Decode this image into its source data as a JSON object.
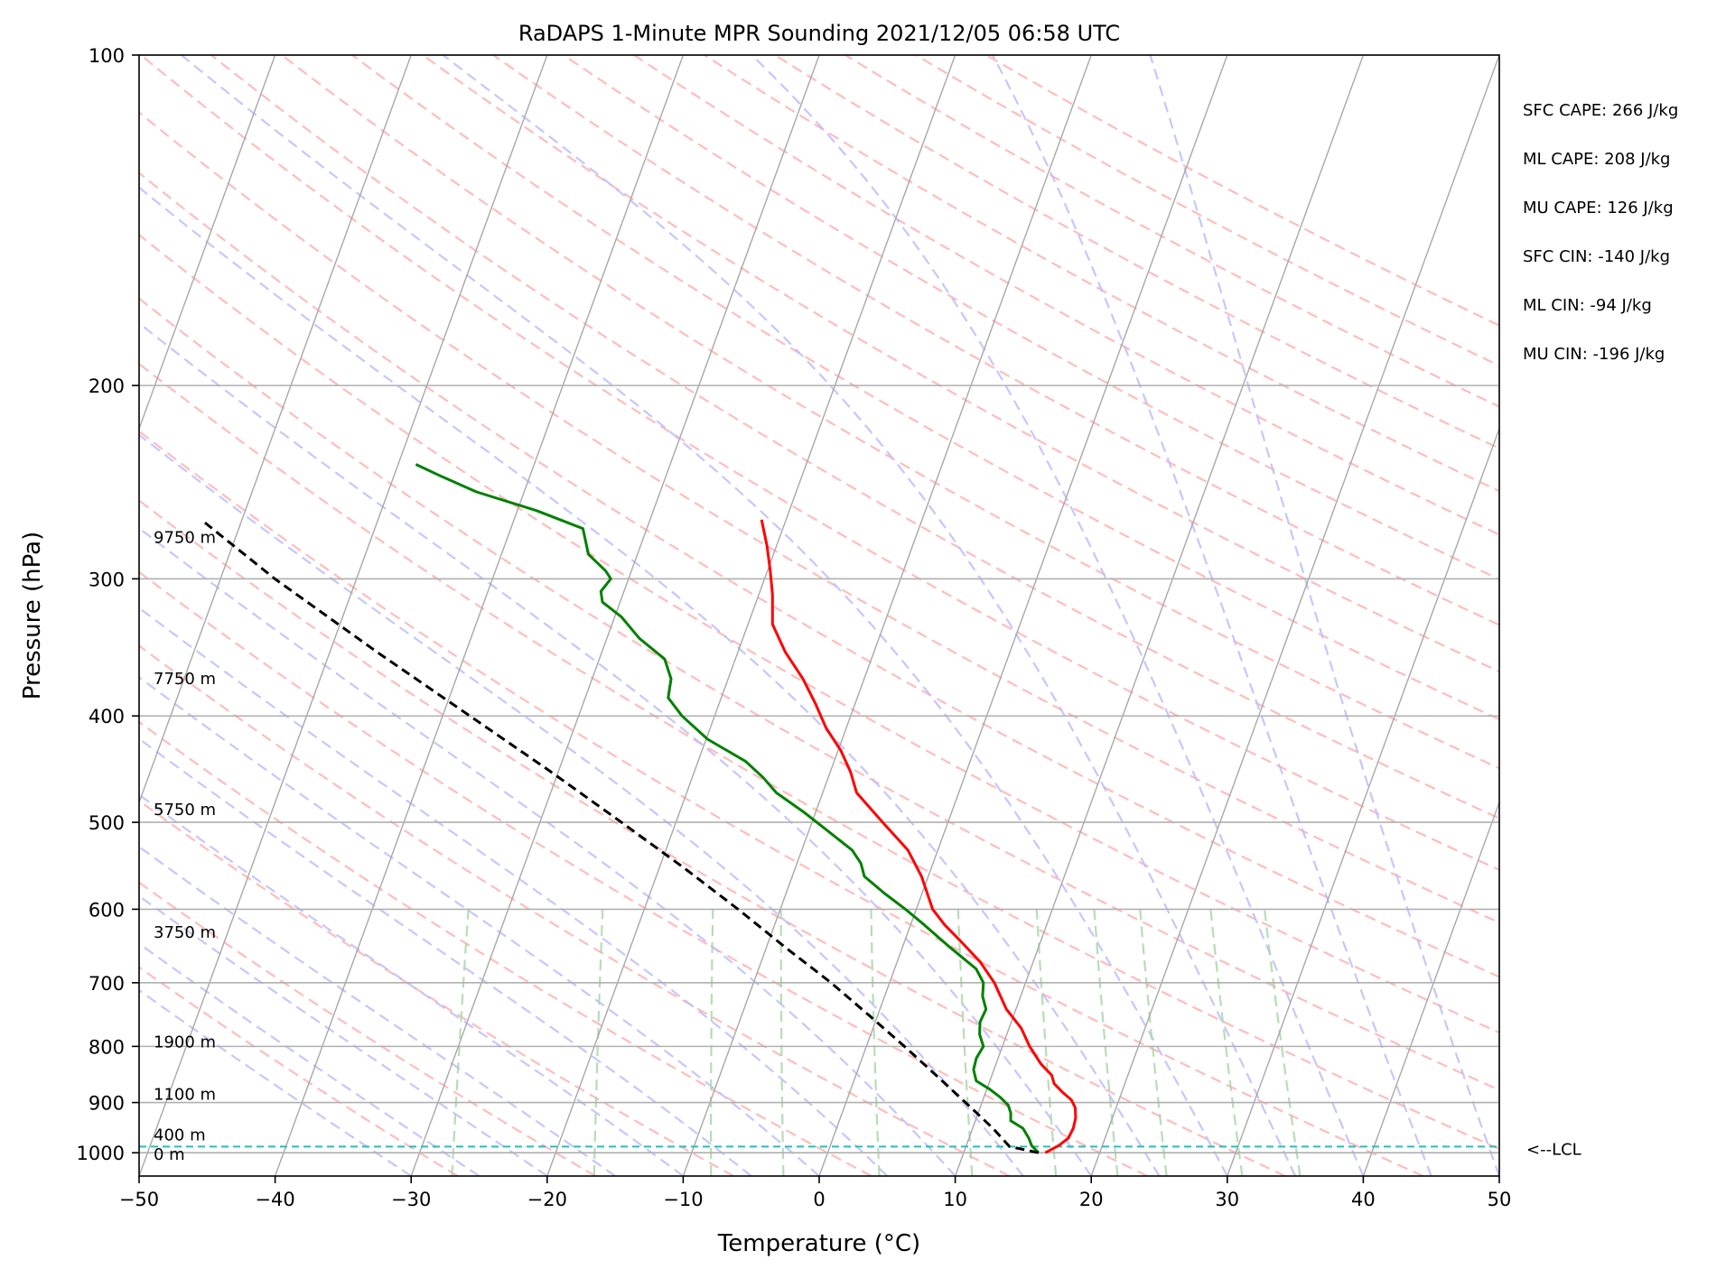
{
  "chart_data": {
    "type": "line",
    "chart_kind": "skew-T log-p",
    "title": "RaDAPS 1-Minute MPR Sounding 2021/12/05 06:58 UTC",
    "xlabel": "Temperature (°C)",
    "ylabel": "Pressure (hPa)",
    "xlim": [
      -50,
      50
    ],
    "ylim": [
      1050,
      100
    ],
    "y_scale": "log",
    "grid": true,
    "x_ticks": [
      -50,
      -40,
      -30,
      -20,
      -10,
      0,
      10,
      20,
      30,
      40,
      50
    ],
    "x_tick_labels": [
      "−50",
      "−40",
      "−30",
      "−20",
      "−10",
      "0",
      "10",
      "20",
      "30",
      "40",
      "50"
    ],
    "y_ticks": [
      100,
      200,
      300,
      400,
      500,
      600,
      700,
      800,
      900,
      1000
    ],
    "y_tick_labels": [
      "100",
      "200",
      "300",
      "400",
      "500",
      "600",
      "700",
      "800",
      "900",
      "1000"
    ],
    "height_labels": [
      {
        "pressure": 275,
        "text": "9750 m"
      },
      {
        "pressure": 370,
        "text": "7750 m"
      },
      {
        "pressure": 487,
        "text": "5750 m"
      },
      {
        "pressure": 630,
        "text": "3750 m"
      },
      {
        "pressure": 793,
        "text": "1900 m"
      },
      {
        "pressure": 885,
        "text": "1100 m"
      },
      {
        "pressure": 963,
        "text": "400 m"
      },
      {
        "pressure": 1003,
        "text": "0 m"
      }
    ],
    "lcl": {
      "pressure": 987,
      "label": "<--LCL"
    },
    "indices": [
      "SFC CAPE: 266 J/kg",
      "ML CAPE: 208 J/kg",
      "MU CAPE: 126 J/kg",
      "SFC CIN: -140 J/kg",
      "ML CIN: -94 J/kg",
      "MU CIN: -196 J/kg"
    ],
    "series": [
      {
        "role": "temperature",
        "color": "#ff0000",
        "points": [
          [
            1000,
            16.0
          ],
          [
            985,
            16.8
          ],
          [
            970,
            17.3
          ],
          [
            950,
            17.4
          ],
          [
            930,
            17.3
          ],
          [
            910,
            17.0
          ],
          [
            895,
            16.5
          ],
          [
            880,
            15.6
          ],
          [
            865,
            14.8
          ],
          [
            850,
            14.4
          ],
          [
            830,
            13.3
          ],
          [
            800,
            12.0
          ],
          [
            770,
            10.9
          ],
          [
            740,
            9.3
          ],
          [
            700,
            7.7
          ],
          [
            670,
            6.1
          ],
          [
            640,
            4.0
          ],
          [
            620,
            2.5
          ],
          [
            600,
            1.2
          ],
          [
            560,
            -0.5
          ],
          [
            530,
            -2.2
          ],
          [
            500,
            -4.8
          ],
          [
            470,
            -7.5
          ],
          [
            450,
            -8.5
          ],
          [
            430,
            -9.8
          ],
          [
            410,
            -11.5
          ],
          [
            390,
            -12.9
          ],
          [
            370,
            -14.5
          ],
          [
            350,
            -16.5
          ],
          [
            330,
            -18.2
          ],
          [
            310,
            -19.0
          ],
          [
            295,
            -19.8
          ],
          [
            280,
            -20.7
          ],
          [
            265,
            -21.8
          ]
        ]
      },
      {
        "role": "dewpoint",
        "color": "#008000",
        "points": [
          [
            1000,
            15.5
          ],
          [
            985,
            14.8
          ],
          [
            970,
            14.4
          ],
          [
            950,
            13.7
          ],
          [
            935,
            12.6
          ],
          [
            920,
            12.4
          ],
          [
            905,
            12.0
          ],
          [
            890,
            11.2
          ],
          [
            875,
            10.2
          ],
          [
            860,
            9.0
          ],
          [
            840,
            8.5
          ],
          [
            820,
            8.4
          ],
          [
            800,
            8.6
          ],
          [
            780,
            8.0
          ],
          [
            760,
            7.7
          ],
          [
            740,
            7.8
          ],
          [
            720,
            7.2
          ],
          [
            700,
            6.9
          ],
          [
            680,
            6.0
          ],
          [
            650,
            3.5
          ],
          [
            620,
            1.0
          ],
          [
            600,
            -0.8
          ],
          [
            580,
            -2.8
          ],
          [
            560,
            -4.7
          ],
          [
            545,
            -5.3
          ],
          [
            530,
            -6.3
          ],
          [
            510,
            -8.5
          ],
          [
            490,
            -10.8
          ],
          [
            470,
            -13.4
          ],
          [
            455,
            -14.8
          ],
          [
            440,
            -16.5
          ],
          [
            420,
            -19.9
          ],
          [
            400,
            -22.4
          ],
          [
            385,
            -23.9
          ],
          [
            370,
            -24.2
          ],
          [
            355,
            -25.2
          ],
          [
            340,
            -27.6
          ],
          [
            325,
            -29.5
          ],
          [
            315,
            -31.3
          ],
          [
            308,
            -31.7
          ],
          [
            300,
            -31.3
          ],
          [
            295,
            -31.9
          ],
          [
            285,
            -33.6
          ],
          [
            270,
            -34.7
          ],
          [
            260,
            -38.6
          ],
          [
            250,
            -43.5
          ],
          [
            242,
            -46.5
          ],
          [
            236,
            -48.7
          ]
        ]
      },
      {
        "role": "parcel",
        "color": "#000000",
        "points": [
          [
            1000,
            15.5
          ],
          [
            987,
            13.2
          ],
          [
            950,
            11.5
          ],
          [
            900,
            8.8
          ],
          [
            850,
            5.9
          ],
          [
            800,
            2.8
          ],
          [
            750,
            -0.6
          ],
          [
            700,
            -4.3
          ],
          [
            650,
            -8.6
          ],
          [
            600,
            -13.1
          ],
          [
            550,
            -18.2
          ],
          [
            500,
            -24.0
          ],
          [
            450,
            -30.5
          ],
          [
            400,
            -38.0
          ],
          [
            350,
            -46.5
          ],
          [
            300,
            -56.0
          ],
          [
            265,
            -63.0
          ]
        ]
      }
    ]
  }
}
